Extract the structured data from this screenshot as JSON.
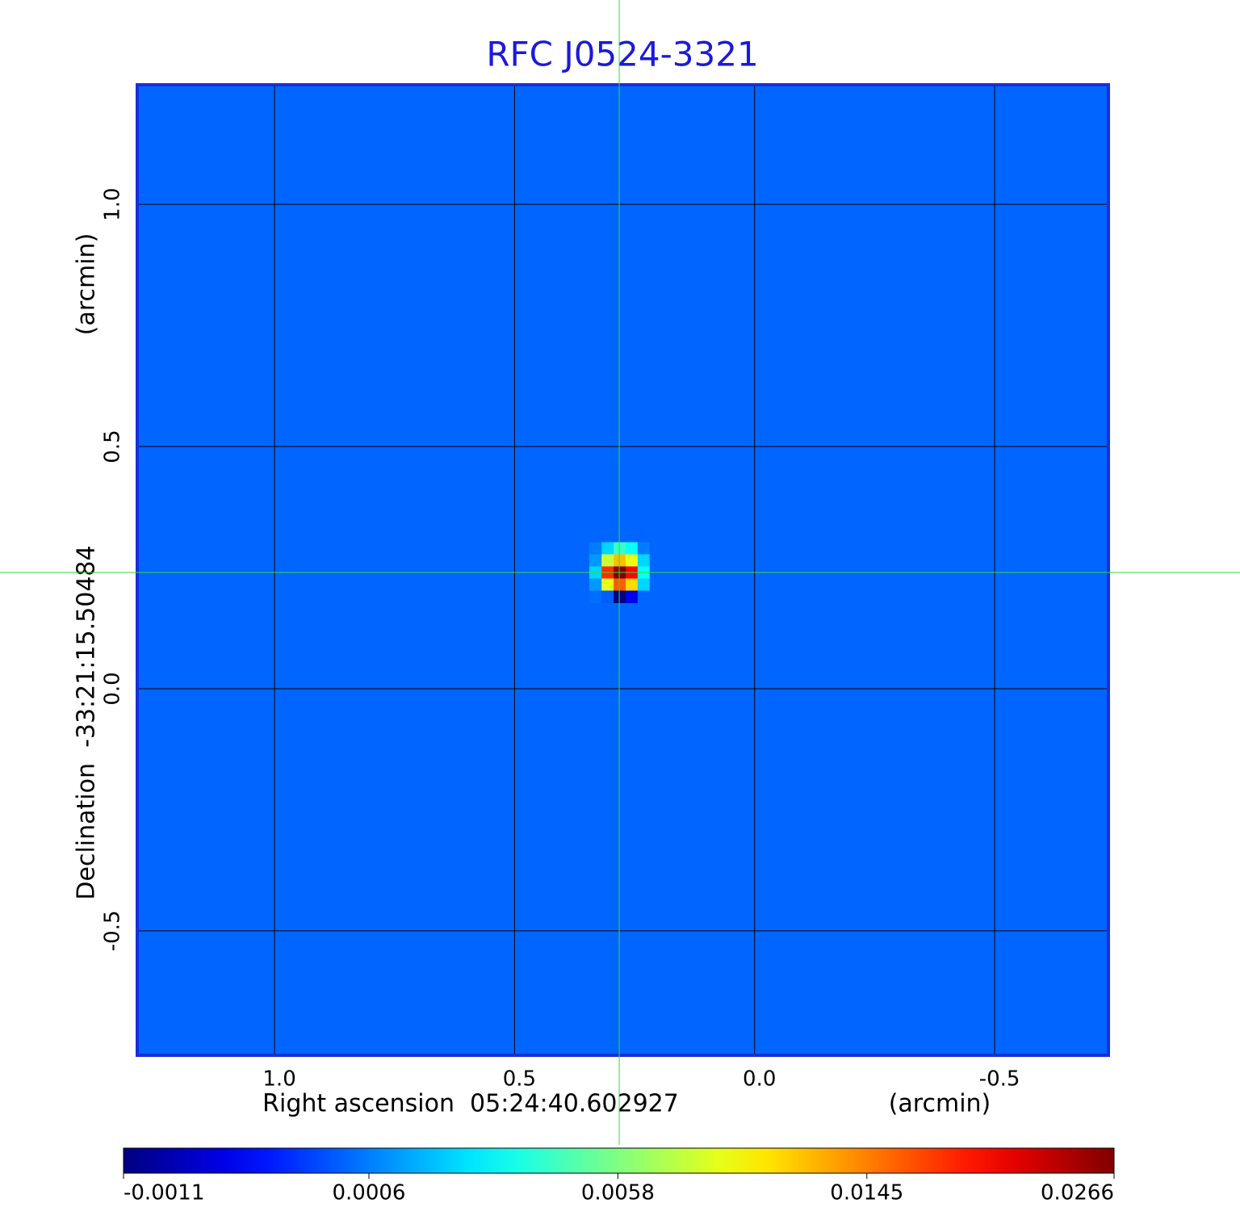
{
  "chart_data": {
    "type": "heatmap",
    "title": "RFC J0524-3321",
    "xlabel": "Right ascension  05:24:40.602927",
    "xlabel_unit": "(arcmin)",
    "ylabel": "Declination  -33:21:15.50484",
    "ylabel_unit": "(arcmin)",
    "xlim": [
      1.286,
      -0.737
    ],
    "ylim": [
      -0.757,
      1.247
    ],
    "xticks": [
      {
        "value": 1,
        "label": "1.0"
      },
      {
        "value": 0.5,
        "label": "0.5"
      },
      {
        "value": 0,
        "label": "0.0"
      },
      {
        "value": -0.5,
        "label": "-0.5"
      }
    ],
    "yticks": [
      {
        "value": -0.5,
        "label": "-0.5"
      },
      {
        "value": 0,
        "label": "0.0"
      },
      {
        "value": 0.5,
        "label": "0.5"
      },
      {
        "value": 1,
        "label": "1.0"
      }
    ],
    "grid": true,
    "colormap": "jet",
    "colorbar": {
      "range": [
        -0.0011,
        0.0266
      ],
      "scale": "sqrt",
      "ticks": [
        -0.0011,
        0.0006,
        0.0058,
        0.0145,
        0.0266
      ]
    },
    "crosshair": {
      "x": 0.282,
      "y": 0.24,
      "color": "#33dd33"
    },
    "image": {
      "background": 0.0003,
      "source": {
        "x": 0.282,
        "y": 0.24,
        "pixel": 0.025,
        "values": [
          [
            0.0006,
            0.003,
            0.004,
            0.002,
            0.0006
          ],
          [
            0.002,
            0.009,
            0.012,
            0.008,
            0.001
          ],
          [
            0.003,
            0.02,
            0.0266,
            0.018,
            0.002
          ],
          [
            0.002,
            0.011,
            0.016,
            0.009,
            0.001
          ],
          [
            0.0003,
            -0.0008,
            -0.0011,
            0.0002,
            0.0004
          ]
        ]
      }
    }
  }
}
